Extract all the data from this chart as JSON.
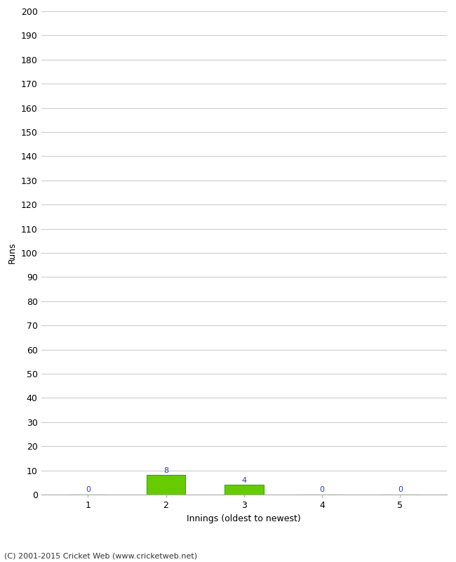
{
  "xlabel": "Innings (oldest to newest)",
  "ylabel": "Runs",
  "categories": [
    1,
    2,
    3,
    4,
    5
  ],
  "values": [
    0,
    8,
    4,
    0,
    0
  ],
  "bar_color": "#66cc00",
  "bar_edge_color": "#33aa00",
  "label_color": "#3333cc",
  "ylim": [
    0,
    200
  ],
  "ytick_step": 10,
  "background_color": "#ffffff",
  "grid_color": "#cccccc",
  "footnote": "(C) 2001-2015 Cricket Web (www.cricketweb.net)"
}
